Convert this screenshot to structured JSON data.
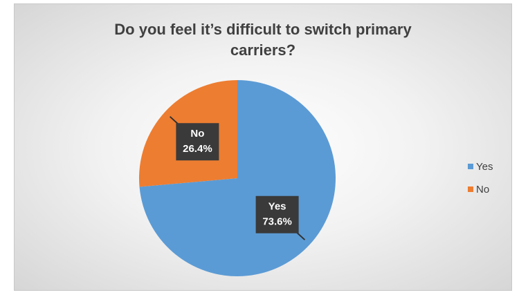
{
  "chart_data": {
    "type": "pie",
    "title": "Do you feel it’s difficult to switch primary carriers?",
    "categories": [
      "Yes",
      "No"
    ],
    "values": [
      73.6,
      26.4
    ],
    "value_labels": [
      "73.6%",
      "26.4%"
    ],
    "colors": [
      "#5b9bd5",
      "#ed7d31"
    ],
    "legend": "right"
  }
}
